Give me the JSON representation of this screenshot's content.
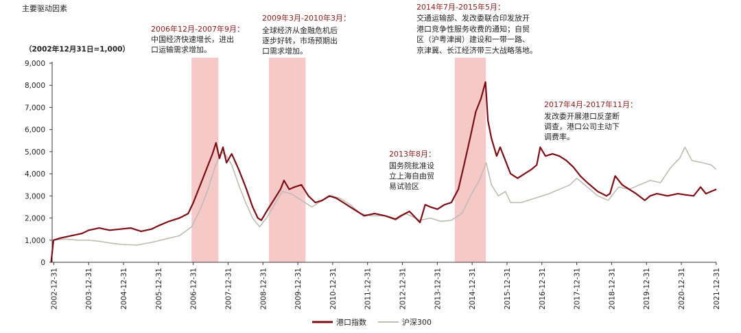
{
  "chart_data": {
    "type": "line",
    "title": "主要驱动因素",
    "ylabel": "（2002年12月31日=1,000）",
    "xlabel": "",
    "ylim": [
      0,
      9000
    ],
    "yticks": [
      "0",
      "1,000",
      "2,000",
      "3,000",
      "4,000",
      "5,000",
      "6,000",
      "7,000",
      "8,000",
      "9,000"
    ],
    "ytick_values": [
      0,
      1000,
      2000,
      3000,
      4000,
      5000,
      6000,
      7000,
      8000,
      9000
    ],
    "xticks": [
      "2002-12-31",
      "2003-12-31",
      "2004-12-31",
      "2005-12-31",
      "2006-12-31",
      "2007-12-31",
      "2008-12-31",
      "2009-12-31",
      "2010-12-31",
      "2011-12-31",
      "2012-12-31",
      "2013-12-31",
      "2014-12-31",
      "2015-12-31",
      "2016-12-31",
      "2017-12-31",
      "2018-12-31",
      "2019-12-31",
      "2020-12-31",
      "2021-12-31"
    ],
    "x_range": [
      2002.95,
      2022.0
    ],
    "grid": false,
    "legend_position": "bottom",
    "colors": {
      "port": "#7b0c14",
      "hs300": "#bfbab2",
      "shade": "#f6c9c9"
    },
    "series": [
      {
        "name": "港口指数",
        "points": [
          [
            2002.92,
            0
          ],
          [
            2002.99,
            1000
          ],
          [
            2003.2,
            1100
          ],
          [
            2003.5,
            1200
          ],
          [
            2003.8,
            1300
          ],
          [
            2004.0,
            1450
          ],
          [
            2004.3,
            1550
          ],
          [
            2004.6,
            1450
          ],
          [
            2004.9,
            1500
          ],
          [
            2005.2,
            1550
          ],
          [
            2005.5,
            1400
          ],
          [
            2005.8,
            1500
          ],
          [
            2006.0,
            1650
          ],
          [
            2006.3,
            1850
          ],
          [
            2006.6,
            2000
          ],
          [
            2006.85,
            2200
          ],
          [
            2007.0,
            2700
          ],
          [
            2007.2,
            3500
          ],
          [
            2007.4,
            4300
          ],
          [
            2007.55,
            4900
          ],
          [
            2007.65,
            5400
          ],
          [
            2007.75,
            4700
          ],
          [
            2007.85,
            5200
          ],
          [
            2007.95,
            4500
          ],
          [
            2008.1,
            4900
          ],
          [
            2008.3,
            4200
          ],
          [
            2008.5,
            3400
          ],
          [
            2008.7,
            2500
          ],
          [
            2008.85,
            2000
          ],
          [
            2008.95,
            1900
          ],
          [
            2009.1,
            2300
          ],
          [
            2009.3,
            2800
          ],
          [
            2009.5,
            3300
          ],
          [
            2009.6,
            3700
          ],
          [
            2009.75,
            3300
          ],
          [
            2009.9,
            3400
          ],
          [
            2010.1,
            3500
          ],
          [
            2010.3,
            3000
          ],
          [
            2010.5,
            2700
          ],
          [
            2010.7,
            2800
          ],
          [
            2010.9,
            3000
          ],
          [
            2011.1,
            2900
          ],
          [
            2011.3,
            2700
          ],
          [
            2011.6,
            2400
          ],
          [
            2011.9,
            2100
          ],
          [
            2012.2,
            2200
          ],
          [
            2012.5,
            2100
          ],
          [
            2012.8,
            1950
          ],
          [
            2012.95,
            2100
          ],
          [
            2013.2,
            2300
          ],
          [
            2013.5,
            1800
          ],
          [
            2013.65,
            2600
          ],
          [
            2013.8,
            2500
          ],
          [
            2014.0,
            2400
          ],
          [
            2014.2,
            2600
          ],
          [
            2014.4,
            2700
          ],
          [
            2014.6,
            3300
          ],
          [
            2014.75,
            4300
          ],
          [
            2014.85,
            5000
          ],
          [
            2014.95,
            5700
          ],
          [
            2015.1,
            6800
          ],
          [
            2015.25,
            7400
          ],
          [
            2015.38,
            8150
          ],
          [
            2015.45,
            6400
          ],
          [
            2015.55,
            5600
          ],
          [
            2015.7,
            4800
          ],
          [
            2015.8,
            5200
          ],
          [
            2015.95,
            4600
          ],
          [
            2016.1,
            4000
          ],
          [
            2016.3,
            3800
          ],
          [
            2016.5,
            4000
          ],
          [
            2016.7,
            4200
          ],
          [
            2016.85,
            4400
          ],
          [
            2016.95,
            5200
          ],
          [
            2017.1,
            4800
          ],
          [
            2017.3,
            4900
          ],
          [
            2017.5,
            4800
          ],
          [
            2017.7,
            4600
          ],
          [
            2017.9,
            4300
          ],
          [
            2018.1,
            3900
          ],
          [
            2018.3,
            3600
          ],
          [
            2018.6,
            3200
          ],
          [
            2018.85,
            3000
          ],
          [
            2018.95,
            3100
          ],
          [
            2019.1,
            3900
          ],
          [
            2019.3,
            3500
          ],
          [
            2019.5,
            3300
          ],
          [
            2019.7,
            3100
          ],
          [
            2019.95,
            2800
          ],
          [
            2020.1,
            3000
          ],
          [
            2020.3,
            3100
          ],
          [
            2020.6,
            3000
          ],
          [
            2020.9,
            3100
          ],
          [
            2021.1,
            3050
          ],
          [
            2021.35,
            3000
          ],
          [
            2021.55,
            3400
          ],
          [
            2021.7,
            3100
          ],
          [
            2021.85,
            3200
          ],
          [
            2022.0,
            3300
          ]
        ]
      },
      {
        "name": "沪深300",
        "points": [
          [
            2002.99,
            1000
          ],
          [
            2003.3,
            1050
          ],
          [
            2003.7,
            1000
          ],
          [
            2004.0,
            1000
          ],
          [
            2004.3,
            950
          ],
          [
            2004.7,
            850
          ],
          [
            2005.0,
            800
          ],
          [
            2005.4,
            780
          ],
          [
            2005.8,
            900
          ],
          [
            2006.2,
            1050
          ],
          [
            2006.6,
            1200
          ],
          [
            2006.95,
            1600
          ],
          [
            2007.2,
            2400
          ],
          [
            2007.4,
            3200
          ],
          [
            2007.6,
            4200
          ],
          [
            2007.8,
            5000
          ],
          [
            2007.95,
            4800
          ],
          [
            2008.1,
            4400
          ],
          [
            2008.3,
            3500
          ],
          [
            2008.5,
            2700
          ],
          [
            2008.7,
            2000
          ],
          [
            2008.9,
            1600
          ],
          [
            2009.1,
            2000
          ],
          [
            2009.4,
            2800
          ],
          [
            2009.55,
            3200
          ],
          [
            2009.8,
            3100
          ],
          [
            2010.1,
            2800
          ],
          [
            2010.4,
            2500
          ],
          [
            2010.7,
            2800
          ],
          [
            2010.95,
            3000
          ],
          [
            2011.2,
            2900
          ],
          [
            2011.5,
            2600
          ],
          [
            2011.8,
            2200
          ],
          [
            2012.1,
            2100
          ],
          [
            2012.5,
            2100
          ],
          [
            2012.8,
            1900
          ],
          [
            2013.1,
            2200
          ],
          [
            2013.5,
            1900
          ],
          [
            2013.8,
            2000
          ],
          [
            2014.1,
            1850
          ],
          [
            2014.4,
            1900
          ],
          [
            2014.7,
            2200
          ],
          [
            2014.95,
            3000
          ],
          [
            2015.2,
            3700
          ],
          [
            2015.4,
            4500
          ],
          [
            2015.55,
            3500
          ],
          [
            2015.75,
            3000
          ],
          [
            2015.95,
            3200
          ],
          [
            2016.1,
            2700
          ],
          [
            2016.4,
            2700
          ],
          [
            2016.8,
            2900
          ],
          [
            2017.2,
            3100
          ],
          [
            2017.5,
            3300
          ],
          [
            2017.8,
            3500
          ],
          [
            2018.0,
            3800
          ],
          [
            2018.3,
            3400
          ],
          [
            2018.6,
            3000
          ],
          [
            2018.9,
            2800
          ],
          [
            2019.2,
            3400
          ],
          [
            2019.5,
            3300
          ],
          [
            2019.8,
            3500
          ],
          [
            2020.1,
            3700
          ],
          [
            2020.4,
            3600
          ],
          [
            2020.7,
            4300
          ],
          [
            2020.95,
            4700
          ],
          [
            2021.1,
            5200
          ],
          [
            2021.3,
            4600
          ],
          [
            2021.6,
            4500
          ],
          [
            2021.85,
            4400
          ],
          [
            2022.0,
            4200
          ]
        ]
      }
    ],
    "shaded_periods": [
      {
        "start": 2006.95,
        "end": 2007.72
      },
      {
        "start": 2009.17,
        "end": 2010.22
      },
      {
        "start": 2014.5,
        "end": 2015.39
      }
    ],
    "annotations": [
      {
        "title": "2006年12月-2007年9月：",
        "lines": [
          "中国经济快速增长，进出",
          "口运输需求增加。"
        ]
      },
      {
        "title": "2009年3月-2010年3月：",
        "lines": [
          "全球经济从金融危机后",
          "逐步好转，市场预期出",
          "口需求增加。"
        ]
      },
      {
        "title": "2013年8月：",
        "lines": [
          "国务院批准设",
          "立上海自由贸",
          "易试验区"
        ]
      },
      {
        "title": "2014年7月-2015年5月：",
        "lines": [
          "交通运输部、发改委联合印发放开",
          "港口竞争性服务收费的通知；自贸",
          "区（沪粤津闽）建设和一带一路、",
          "京津冀、长江经济带三大战略落地。"
        ]
      },
      {
        "title": "2017年4月-2017年11月：",
        "lines": [
          "发改委开展港口反垄断",
          "调查，港口公司主动下",
          "调费率。"
        ]
      }
    ]
  }
}
